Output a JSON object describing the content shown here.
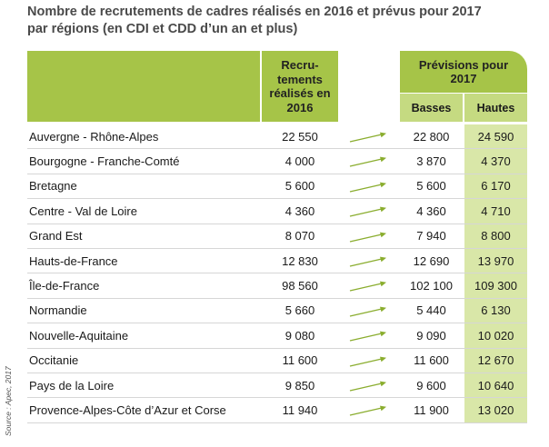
{
  "title": {
    "line1": "Nombre de recrutements de cadres réalisés en 2016 et prévus pour 2017",
    "line2": "par régions (en CDI et CDD d’un an et plus)"
  },
  "source": "Source : Apec, 2017",
  "colors": {
    "accent": "#a6c448",
    "light": "#c5da81",
    "highlight": "#d9e7a8",
    "arrow": "#8aad2e"
  },
  "headers": {
    "recrutements": "Recru- tements réalisés en 2016",
    "previsions": "Prévisions pour 2017",
    "basses": "Basses",
    "hautes": "Hautes"
  },
  "rows": [
    {
      "region": "Auvergne - Rhône-Alpes",
      "realises": "22 550",
      "basses": "22 800",
      "hautes": "24 590"
    },
    {
      "region": "Bourgogne - Franche-Comté",
      "realises": "4 000",
      "basses": "3 870",
      "hautes": "4 370"
    },
    {
      "region": "Bretagne",
      "realises": "5 600",
      "basses": "5 600",
      "hautes": "6 170"
    },
    {
      "region": "Centre - Val de Loire",
      "realises": "4 360",
      "basses": "4 360",
      "hautes": "4 710"
    },
    {
      "region": "Grand Est",
      "realises": "8 070",
      "basses": "7 940",
      "hautes": "8 800"
    },
    {
      "region": "Hauts-de-France",
      "realises": "12 830",
      "basses": "12 690",
      "hautes": "13 970"
    },
    {
      "region": "Île-de-France",
      "realises": "98 560",
      "basses": "102 100",
      "hautes": "109 300"
    },
    {
      "region": "Normandie",
      "realises": "5 660",
      "basses": "5 440",
      "hautes": "6 130"
    },
    {
      "region": "Nouvelle-Aquitaine",
      "realises": "9 080",
      "basses": "9 090",
      "hautes": "10 020"
    },
    {
      "region": "Occitanie",
      "realises": "11 600",
      "basses": "11 600",
      "hautes": "12 670"
    },
    {
      "region": "Pays de la Loire",
      "realises": "9 850",
      "basses": "9 600",
      "hautes": "10 640"
    },
    {
      "region": "Provence-Alpes-Côte d’Azur et Corse",
      "realises": "11 940",
      "basses": "11 900",
      "hautes": "13 020"
    }
  ]
}
